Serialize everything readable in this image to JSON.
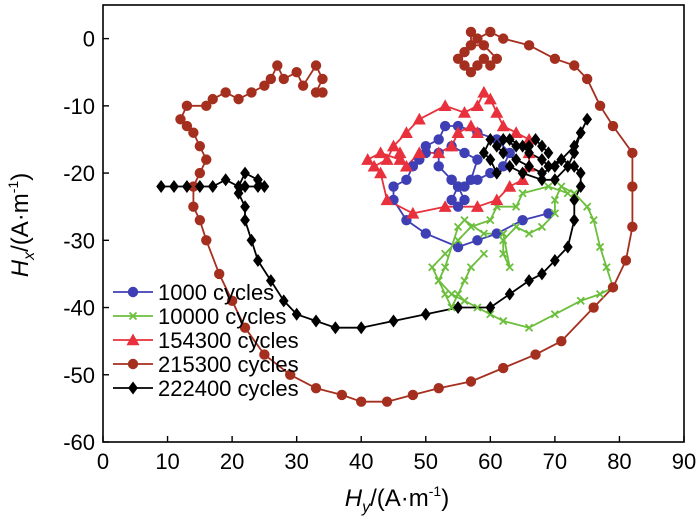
{
  "chart_data": {
    "type": "line",
    "title": "",
    "xlabel": {
      "main": "H",
      "sub": "y",
      "unit": "/(A·m",
      "exp": "-1",
      "close": ")"
    },
    "ylabel": {
      "main": "H",
      "sub": "x",
      "unit": "/(A·m",
      "exp": "-1",
      "close": ")"
    },
    "xlim": [
      0,
      90
    ],
    "ylim": [
      -60,
      5
    ],
    "xticks": [
      0,
      10,
      20,
      30,
      40,
      50,
      60,
      70,
      80,
      90
    ],
    "yticks": [
      0,
      -10,
      -20,
      -30,
      -40,
      -50,
      -60
    ],
    "legend_position": "bottom-left",
    "series": [
      {
        "name": "1000 cycles",
        "color": "#3f3fb5",
        "marker": "circle",
        "points": [
          [
            69,
            -26
          ],
          [
            65,
            -27
          ],
          [
            61,
            -29
          ],
          [
            58,
            -30
          ],
          [
            55,
            -31
          ],
          [
            50,
            -29
          ],
          [
            47,
            -27
          ],
          [
            45,
            -24
          ],
          [
            45,
            -22
          ],
          [
            47,
            -21
          ],
          [
            48,
            -19
          ],
          [
            49,
            -18
          ],
          [
            50,
            -17
          ],
          [
            50,
            -16
          ],
          [
            52,
            -15
          ],
          [
            53,
            -13
          ],
          [
            55,
            -13
          ],
          [
            58,
            -14
          ],
          [
            61,
            -15
          ],
          [
            63,
            -17
          ],
          [
            62,
            -19
          ],
          [
            60,
            -20
          ],
          [
            58,
            -21
          ],
          [
            56,
            -22
          ],
          [
            54,
            -21
          ],
          [
            52,
            -19
          ],
          [
            52,
            -17
          ],
          [
            54,
            -16
          ],
          [
            56,
            -17
          ],
          [
            58,
            -18
          ],
          [
            57,
            -21
          ],
          [
            55,
            -22
          ],
          [
            54,
            -24
          ],
          [
            55,
            -25
          ],
          [
            56,
            -24
          ],
          [
            55,
            -22
          ],
          [
            54,
            -21
          ]
        ]
      },
      {
        "name": "10000 cycles",
        "color": "#6cbf3d",
        "marker": "x",
        "points": [
          [
            72,
            -23
          ],
          [
            69,
            -22
          ],
          [
            65,
            -23
          ],
          [
            64,
            -25
          ],
          [
            61,
            -25
          ],
          [
            60,
            -27
          ],
          [
            57,
            -28
          ],
          [
            55,
            -30
          ],
          [
            53,
            -32
          ],
          [
            51,
            -34
          ],
          [
            52,
            -36
          ],
          [
            54,
            -38
          ],
          [
            56,
            -39
          ],
          [
            58,
            -40
          ],
          [
            60,
            -41
          ],
          [
            62,
            -42
          ],
          [
            66,
            -43
          ],
          [
            70,
            -41
          ],
          [
            74,
            -39
          ],
          [
            77,
            -38
          ],
          [
            79,
            -37
          ],
          [
            78,
            -34
          ],
          [
            77,
            -31
          ],
          [
            76,
            -27
          ],
          [
            75,
            -25
          ],
          [
            73,
            -23
          ],
          [
            71,
            -22
          ],
          [
            70,
            -24
          ],
          [
            70,
            -26
          ],
          [
            68,
            -28
          ],
          [
            66,
            -29
          ],
          [
            64,
            -28
          ],
          [
            62,
            -30
          ],
          [
            62,
            -32
          ],
          [
            63,
            -34
          ],
          [
            62,
            -29
          ],
          [
            59,
            -29
          ],
          [
            56,
            -27
          ],
          [
            55,
            -28
          ],
          [
            53,
            -34
          ],
          [
            52,
            -36
          ],
          [
            53,
            -38
          ],
          [
            54,
            -40
          ],
          [
            55,
            -38
          ],
          [
            56,
            -36
          ],
          [
            57,
            -34
          ],
          [
            59,
            -32
          ]
        ]
      },
      {
        "name": "154300 cycles",
        "color": "#e8313c",
        "marker": "triangle",
        "points": [
          [
            43,
            -20
          ],
          [
            44,
            -24
          ],
          [
            48,
            -26
          ],
          [
            53,
            -25
          ],
          [
            58,
            -25
          ],
          [
            61,
            -24
          ],
          [
            63,
            -22
          ],
          [
            65,
            -21
          ],
          [
            66,
            -19
          ],
          [
            66,
            -17
          ],
          [
            66,
            -15
          ],
          [
            64,
            -14
          ],
          [
            62,
            -13
          ],
          [
            61,
            -11
          ],
          [
            60,
            -9
          ],
          [
            59,
            -8
          ],
          [
            58,
            -10
          ],
          [
            56,
            -11
          ],
          [
            53,
            -10
          ],
          [
            49,
            -12
          ],
          [
            47,
            -14
          ],
          [
            45,
            -16
          ],
          [
            44,
            -18
          ],
          [
            42,
            -19
          ],
          [
            41,
            -18
          ],
          [
            43,
            -17
          ],
          [
            46,
            -18
          ],
          [
            46,
            -17
          ],
          [
            47,
            -19
          ],
          [
            49,
            -17
          ],
          [
            52,
            -17
          ],
          [
            54,
            -16
          ],
          [
            55,
            -14
          ],
          [
            57,
            -13
          ],
          [
            58,
            -14
          ]
        ]
      },
      {
        "name": "215300 cycles",
        "color": "#a52f1f",
        "marker": "circle",
        "points": [
          [
            34,
            -8
          ],
          [
            33,
            -8
          ],
          [
            34,
            -6
          ],
          [
            33,
            -4
          ],
          [
            31,
            -7
          ],
          [
            30,
            -5
          ],
          [
            28,
            -6
          ],
          [
            27,
            -4
          ],
          [
            26,
            -6
          ],
          [
            25,
            -7
          ],
          [
            23,
            -8
          ],
          [
            21,
            -9
          ],
          [
            19,
            -8
          ],
          [
            17,
            -9
          ],
          [
            16,
            -10
          ],
          [
            13,
            -10
          ],
          [
            12,
            -12
          ],
          [
            13,
            -13
          ],
          [
            14,
            -14
          ],
          [
            15,
            -16
          ],
          [
            16,
            -18
          ],
          [
            15,
            -20
          ],
          [
            14,
            -22
          ],
          [
            14,
            -25
          ],
          [
            15,
            -27
          ],
          [
            16,
            -30
          ],
          [
            18,
            -35
          ],
          [
            20,
            -39
          ],
          [
            22,
            -43
          ],
          [
            25,
            -47
          ],
          [
            29,
            -50
          ],
          [
            33,
            -52
          ],
          [
            37,
            -53
          ],
          [
            40,
            -54
          ],
          [
            44,
            -54
          ],
          [
            48,
            -53
          ],
          [
            52,
            -52
          ],
          [
            57,
            -51
          ],
          [
            62,
            -49
          ],
          [
            67,
            -47
          ],
          [
            71,
            -45
          ],
          [
            76,
            -40
          ],
          [
            79,
            -37
          ],
          [
            81,
            -33
          ],
          [
            82,
            -28
          ],
          [
            82,
            -22
          ],
          [
            82,
            -17
          ],
          [
            79,
            -13
          ],
          [
            77,
            -10
          ],
          [
            75,
            -6
          ],
          [
            73,
            -4
          ],
          [
            70,
            -3
          ],
          [
            66,
            -1
          ],
          [
            62,
            0
          ],
          [
            60,
            1
          ],
          [
            58,
            0
          ],
          [
            57,
            -1
          ],
          [
            56,
            -2
          ],
          [
            55,
            -3
          ],
          [
            56,
            -4
          ],
          [
            57,
            -5
          ],
          [
            58,
            -4
          ],
          [
            59,
            -3
          ],
          [
            60,
            -4
          ],
          [
            61,
            -3
          ],
          [
            59,
            -1
          ],
          [
            57,
            -1
          ],
          [
            57,
            1
          ]
        ]
      },
      {
        "name": "222400 cycles",
        "color": "#000000",
        "marker": "diamond",
        "points": [
          [
            9,
            -22
          ],
          [
            11,
            -22
          ],
          [
            13,
            -22
          ],
          [
            15,
            -22
          ],
          [
            17,
            -22
          ],
          [
            19,
            -21
          ],
          [
            21,
            -22
          ],
          [
            22,
            -20
          ],
          [
            24,
            -21
          ],
          [
            25,
            -22
          ],
          [
            24,
            -22
          ],
          [
            22,
            -22
          ],
          [
            21,
            -23
          ],
          [
            22,
            -25
          ],
          [
            22,
            -27
          ],
          [
            23,
            -30
          ],
          [
            24,
            -33
          ],
          [
            26,
            -36
          ],
          [
            28,
            -39
          ],
          [
            30,
            -41
          ],
          [
            33,
            -42
          ],
          [
            36,
            -43
          ],
          [
            40,
            -43
          ],
          [
            45,
            -42
          ],
          [
            50,
            -41
          ],
          [
            55,
            -40
          ],
          [
            60,
            -40
          ],
          [
            63,
            -38
          ],
          [
            66,
            -36
          ],
          [
            68,
            -35
          ],
          [
            70,
            -33
          ],
          [
            72,
            -31
          ],
          [
            73,
            -27
          ],
          [
            73,
            -24
          ],
          [
            74,
            -22
          ],
          [
            74,
            -20
          ],
          [
            73,
            -19
          ],
          [
            71,
            -18
          ],
          [
            70,
            -19
          ],
          [
            68,
            -20
          ],
          [
            66,
            -19
          ],
          [
            64,
            -18
          ],
          [
            62,
            -17
          ],
          [
            61,
            -16
          ],
          [
            63,
            -15
          ],
          [
            65,
            -16
          ],
          [
            66,
            -17
          ],
          [
            68,
            -18
          ],
          [
            69,
            -19
          ],
          [
            71,
            -18
          ],
          [
            73,
            -16
          ],
          [
            74,
            -14
          ],
          [
            75,
            -12
          ],
          [
            74,
            -14
          ],
          [
            73,
            -17
          ],
          [
            72,
            -19
          ],
          [
            70,
            -21
          ],
          [
            68,
            -21
          ],
          [
            65,
            -20
          ],
          [
            63,
            -19
          ],
          [
            61,
            -20
          ],
          [
            60,
            -18
          ],
          [
            59,
            -17
          ],
          [
            60,
            -15
          ],
          [
            62,
            -15
          ],
          [
            64,
            -16
          ],
          [
            66,
            -16
          ],
          [
            67,
            -15
          ],
          [
            68,
            -16
          ],
          [
            69,
            -17
          ]
        ]
      }
    ]
  }
}
